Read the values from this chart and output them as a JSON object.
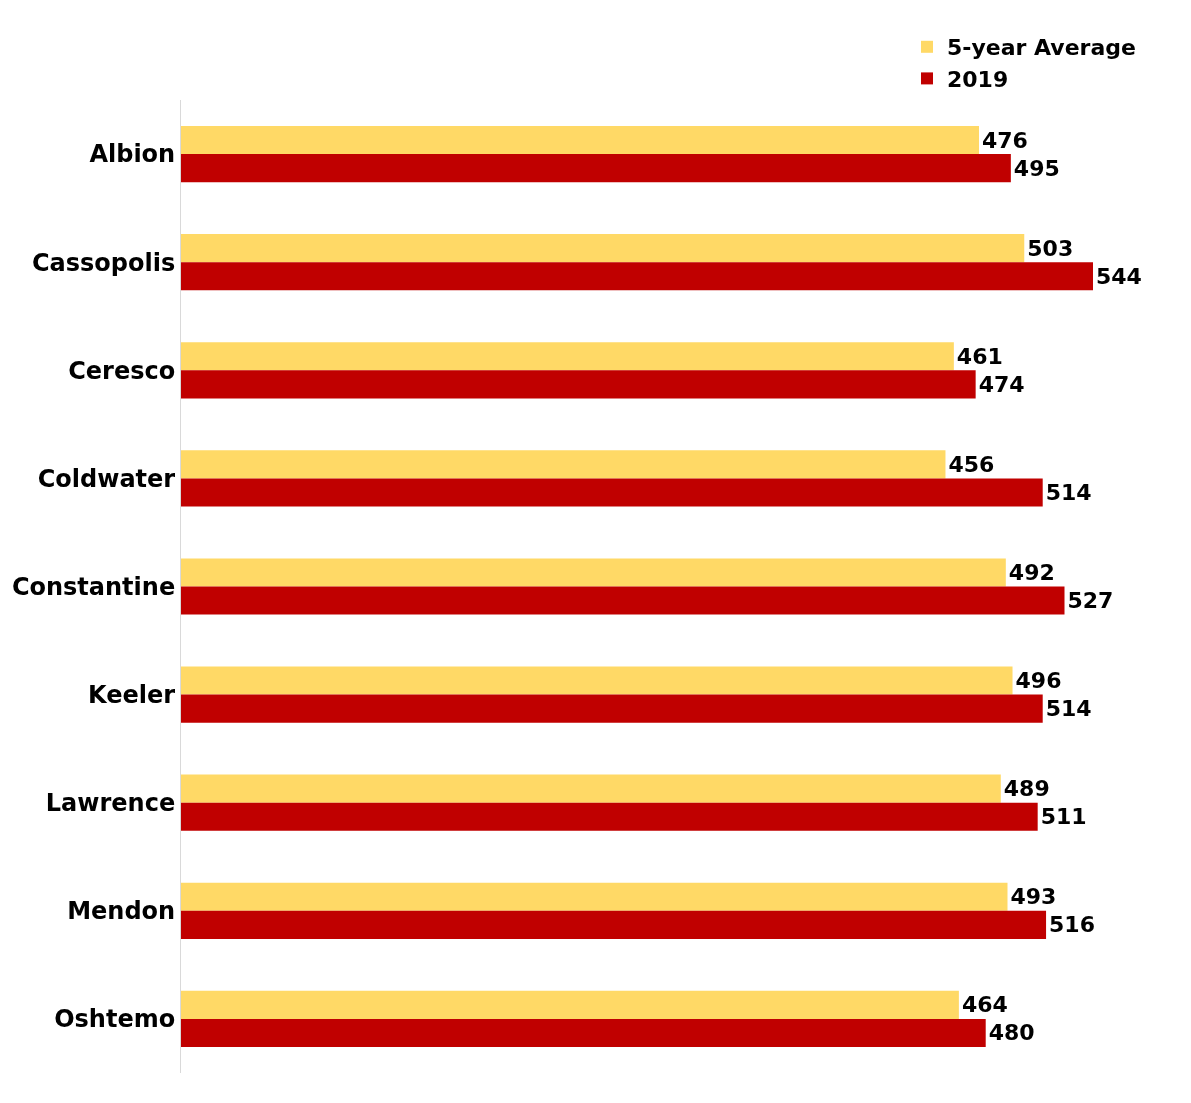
{
  "chart_data": {
    "type": "bar",
    "orientation": "horizontal",
    "categories": [
      "Albion",
      "Cassopolis",
      "Ceresco",
      "Coldwater",
      "Constantine",
      "Keeler",
      "Lawrence",
      "Mendon",
      "Oshtemo"
    ],
    "series": [
      {
        "name": "5-year Average",
        "color": "#ffd966",
        "values": [
          476,
          503,
          461,
          456,
          492,
          496,
          489,
          493,
          464
        ]
      },
      {
        "name": "2019",
        "color": "#c00000",
        "values": [
          495,
          544,
          474,
          514,
          527,
          514,
          511,
          516,
          480
        ]
      }
    ],
    "data_labels": true,
    "legend": "top right",
    "tick_labels": "y"
  }
}
